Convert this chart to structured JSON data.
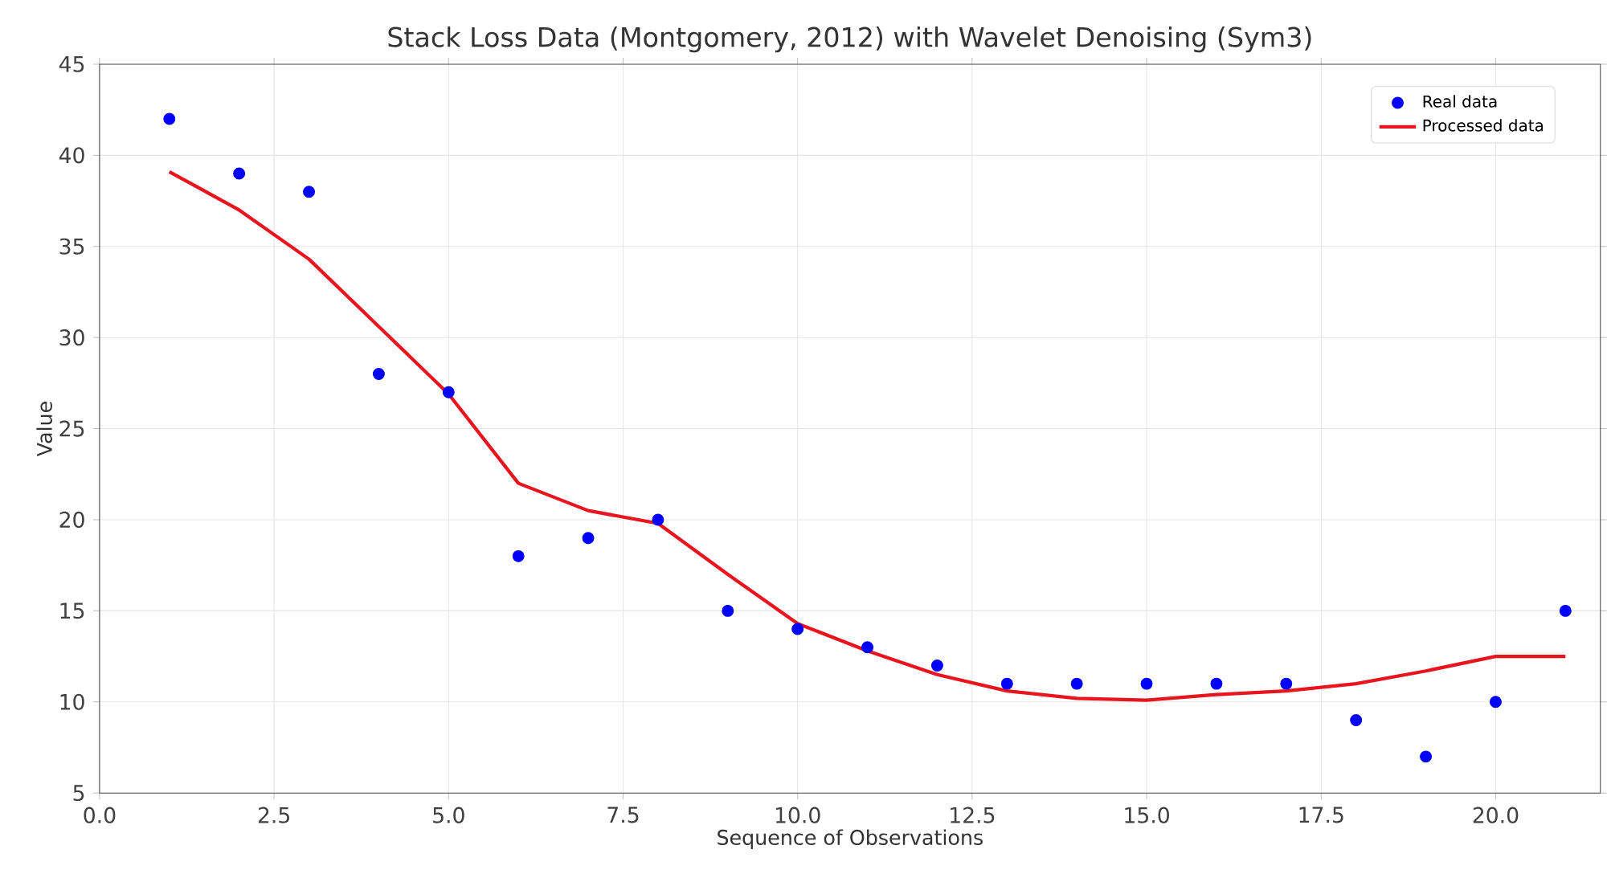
{
  "chart_data": {
    "type": "scatter",
    "title": "Stack Loss Data (Montgomery, 2012) with Wavelet Denoising (Sym3)",
    "xlabel": "Sequence of Observations",
    "ylabel": "Value",
    "x": [
      1,
      2,
      3,
      4,
      5,
      6,
      7,
      8,
      9,
      10,
      11,
      12,
      13,
      14,
      15,
      16,
      17,
      18,
      19,
      20,
      21
    ],
    "series": [
      {
        "name": "Real data",
        "marker": "circle",
        "color": "#0000ff",
        "values": [
          42,
          39,
          38,
          28,
          27,
          18,
          19,
          20,
          15,
          14,
          13,
          12,
          11,
          11,
          11,
          11,
          11,
          9,
          7,
          10,
          15
        ]
      },
      {
        "name": "Processed data",
        "type": "line",
        "marker": "none",
        "color": "#e8141e",
        "values": [
          39.1,
          37.0,
          34.3,
          30.6,
          26.9,
          22.0,
          20.5,
          19.8,
          17.0,
          14.3,
          12.8,
          11.5,
          10.6,
          10.2,
          10.1,
          10.4,
          10.6,
          11.0,
          11.7,
          12.5,
          12.5
        ]
      }
    ],
    "xlim": [
      0,
      21.5
    ],
    "ylim": [
      5,
      45
    ],
    "xticks": [
      {
        "value": 0,
        "label": "0.0"
      },
      {
        "value": 2.5,
        "label": "2.5"
      },
      {
        "value": 5,
        "label": "5.0"
      },
      {
        "value": 7.5,
        "label": "7.5"
      },
      {
        "value": 10,
        "label": "10.0"
      },
      {
        "value": 12.5,
        "label": "12.5"
      },
      {
        "value": 15,
        "label": "15.0"
      },
      {
        "value": 17.5,
        "label": "17.5"
      },
      {
        "value": 20,
        "label": "20.0"
      }
    ],
    "yticks": [
      5,
      10,
      15,
      20,
      25,
      30,
      35,
      40,
      45
    ],
    "grid": true,
    "legend": "top right"
  }
}
